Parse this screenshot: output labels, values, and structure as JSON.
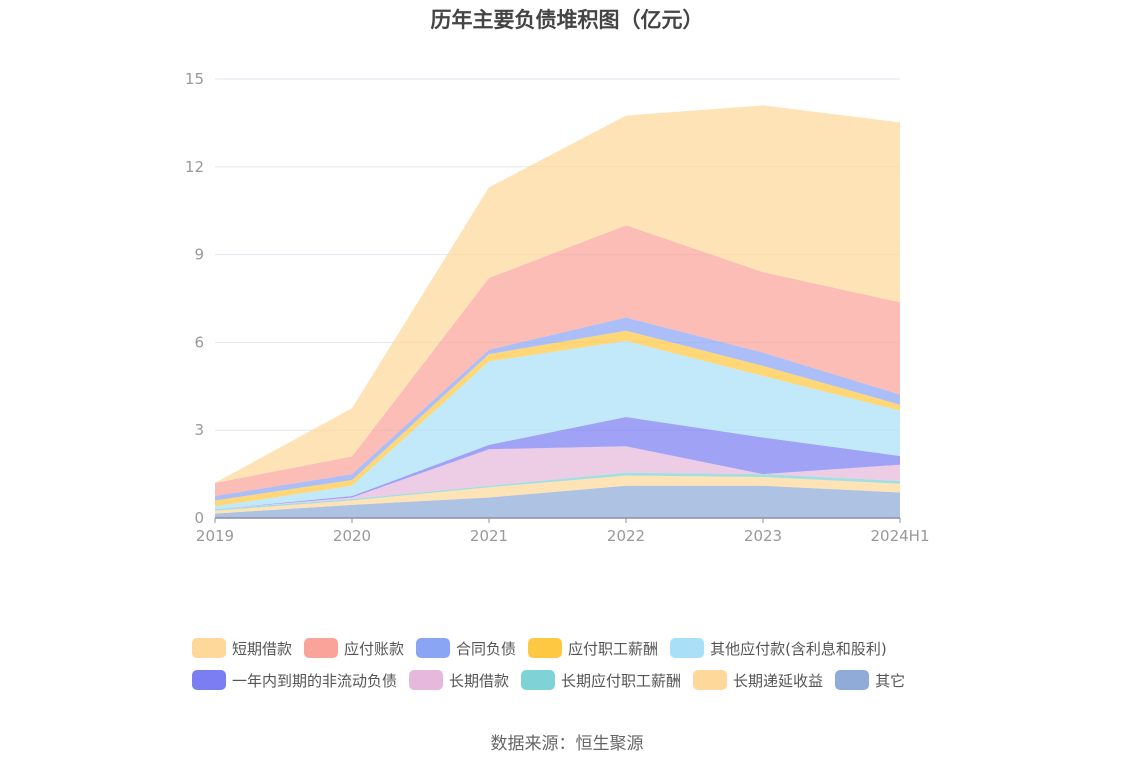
{
  "chart_data": {
    "type": "area",
    "stacked": true,
    "title": "历年主要负债堆积图（亿元）",
    "x": [
      "2019",
      "2020",
      "2021",
      "2022",
      "2023",
      "2024H1"
    ],
    "ylim": [
      0,
      15
    ],
    "yticks": [
      "0",
      "3",
      "6",
      "9",
      "12",
      "15"
    ],
    "grid": true,
    "legend_position": "bottom",
    "series": [
      {
        "name": "其它",
        "color": "#8fabd8",
        "values": [
          0.15,
          0.45,
          0.7,
          1.1,
          1.1,
          0.87
        ]
      },
      {
        "name": "长期递延收益",
        "color": "#fdd89a",
        "values": [
          0.1,
          0.15,
          0.35,
          0.35,
          0.3,
          0.3
        ]
      },
      {
        "name": "长期应付职工薪酬",
        "color": "#7fd3d6",
        "values": [
          0.05,
          0.05,
          0.05,
          0.1,
          0.1,
          0.1
        ]
      },
      {
        "name": "长期借款",
        "color": "#e6b8db",
        "values": [
          0.0,
          0.05,
          1.25,
          0.9,
          0.0,
          0.55
        ]
      },
      {
        "name": "一年内到期的非流动负债",
        "color": "#7b7ef2",
        "values": [
          0.0,
          0.05,
          0.15,
          1.0,
          1.25,
          0.3
        ]
      },
      {
        "name": "其他应付款(含利息和股利)",
        "color": "#a9e0f8",
        "values": [
          0.1,
          0.35,
          2.85,
          2.6,
          2.1,
          1.55
        ]
      },
      {
        "name": "应付职工薪酬",
        "color": "#ffc843",
        "values": [
          0.2,
          0.2,
          0.25,
          0.35,
          0.35,
          0.2
        ]
      },
      {
        "name": "合同负债",
        "color": "#8ba5f5",
        "values": [
          0.15,
          0.2,
          0.15,
          0.45,
          0.45,
          0.35
        ]
      },
      {
        "name": "应付账款",
        "color": "#f9a39a",
        "values": [
          0.45,
          0.6,
          2.45,
          3.15,
          2.75,
          3.15
        ]
      },
      {
        "name": "短期借款",
        "color": "#fdd89a",
        "values": [
          0.0,
          1.65,
          3.1,
          3.75,
          5.7,
          6.15
        ]
      }
    ],
    "legend_order": [
      "短期借款",
      "应付账款",
      "合同负债",
      "应付职工薪酬",
      "其他应付款(含利息和股利)",
      "一年内到期的非流动负债",
      "长期借款",
      "长期应付职工薪酬",
      "长期递延收益",
      "其它"
    ]
  },
  "source_text": "数据来源：恒生聚源"
}
